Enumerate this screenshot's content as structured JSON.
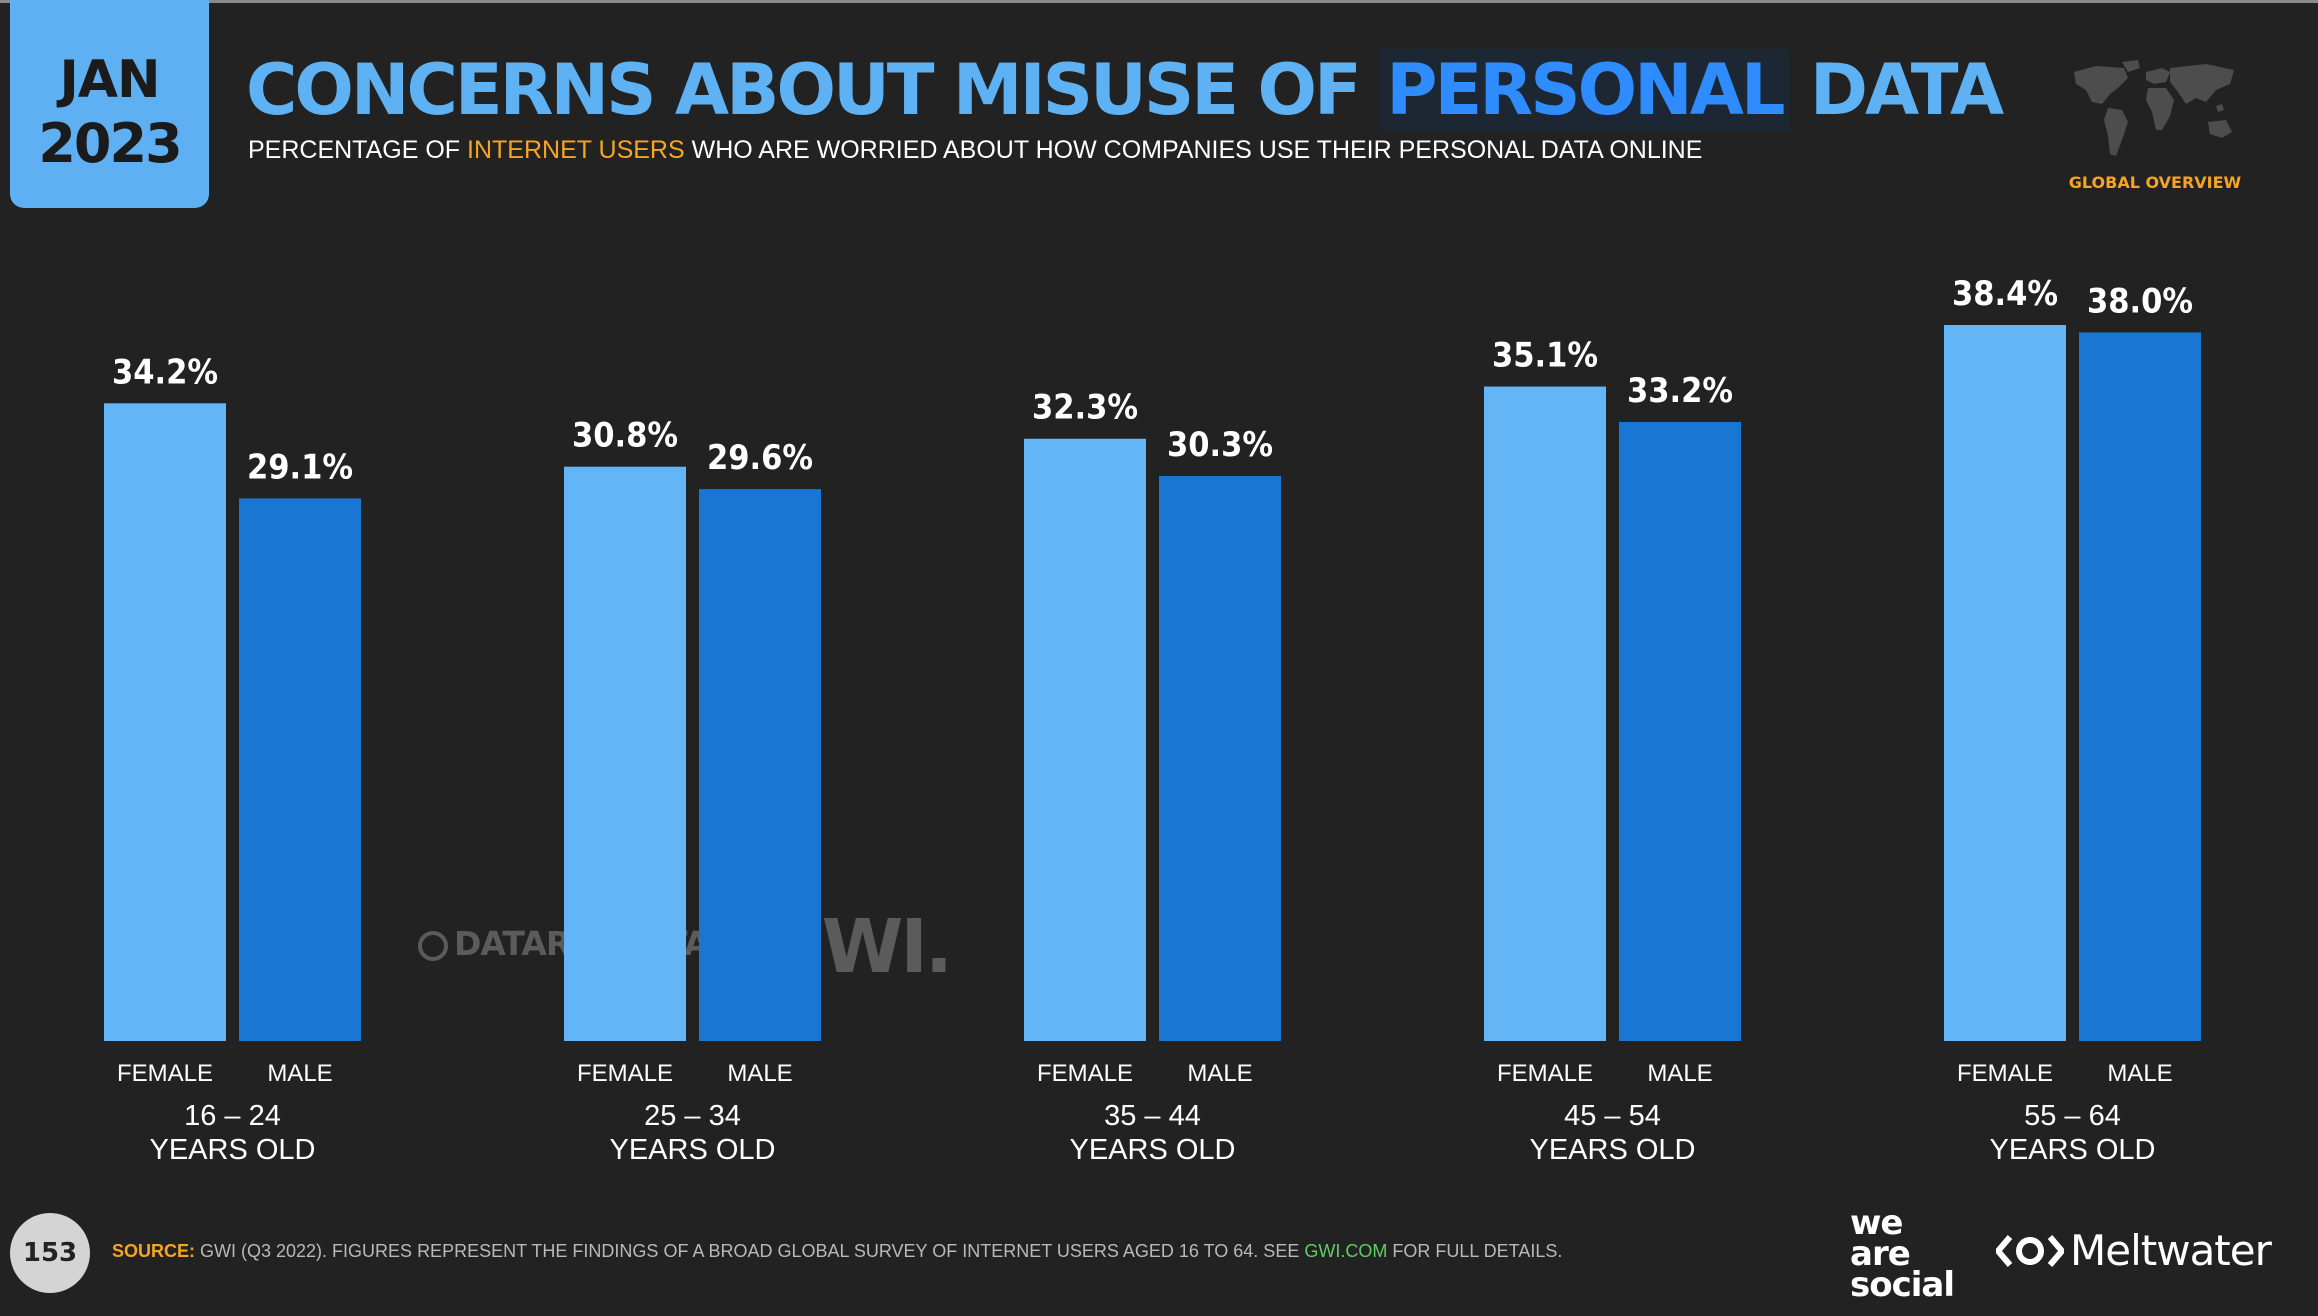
{
  "header": {
    "month": "JAN",
    "year": "2023",
    "title_pre": "CONCERNS ABOUT MISUSE OF ",
    "title_hl": "PERSONAL",
    "title_post": " DATA",
    "sub_pre": "PERCENTAGE OF ",
    "sub_hl": "INTERNET USERS",
    "sub_post": " WHO ARE WORRIED ABOUT HOW COMPANIES USE THEIR PERSONAL DATA ONLINE",
    "section": "GLOBAL OVERVIEW"
  },
  "chart_data": {
    "type": "bar",
    "categories": [
      "16 – 24",
      "25 – 34",
      "35 – 44",
      "45 – 54",
      "55 – 64"
    ],
    "category_suffix": "YEARS OLD",
    "series": [
      {
        "name": "FEMALE",
        "values": [
          34.2,
          30.8,
          32.3,
          35.1,
          38.4
        ],
        "color": "#64b5f6"
      },
      {
        "name": "MALE",
        "values": [
          29.1,
          29.6,
          30.3,
          33.2,
          38.0
        ],
        "color": "#1976d2"
      }
    ],
    "value_format": "%",
    "ylim": [
      0,
      38.4
    ],
    "grid": false,
    "legend": "none"
  },
  "watermark": {
    "datareportal": "DATAREPORTAL",
    "gwi": "GWI."
  },
  "footer": {
    "page_number": "153",
    "source_label": "SOURCE:",
    "source_pre": " GWI (Q3 2022). FIGURES REPRESENT THE FINDINGS OF A BROAD GLOBAL SURVEY OF INTERNET USERS AGED 16 TO 64. SEE ",
    "source_link": "GWI.COM",
    "source_post": " FOR FULL DETAILS.",
    "brand1_line1": "we",
    "brand1_line2": "are",
    "brand1_line3": "social",
    "brand2": "Meltwater"
  },
  "colors": {
    "accent_orange": "#f5a523",
    "title_blue": "#5eb2f3",
    "highlight_blue": "#2f8cff",
    "background": "#222223"
  }
}
